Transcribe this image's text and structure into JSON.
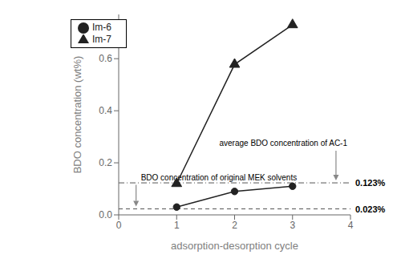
{
  "chart_data": {
    "type": "line",
    "x": [
      1,
      2,
      3
    ],
    "series": [
      {
        "name": "Im-6",
        "color": "#222222",
        "marker": "circle",
        "values": [
          0.03,
          0.09,
          0.11
        ]
      },
      {
        "name": "Im-7",
        "color": "#222222",
        "marker": "triangle",
        "values": [
          0.12,
          0.578,
          0.73
        ]
      }
    ],
    "xlabel": "adsorption-desorption cycle",
    "ylabel": "BDO concentration (wt%)",
    "xlim": [
      0,
      4
    ],
    "ylim": [
      0,
      0.77
    ],
    "xticks": [
      0,
      1,
      2,
      3,
      4
    ],
    "yticks": [
      {
        "value": 0.0,
        "label": "0.0"
      },
      0.2,
      0.4,
      0.6
    ],
    "grid": false,
    "legend": "upper left",
    "reference_lines": [
      {
        "y": 0.123,
        "label": "0.123%",
        "line_style": "dashdot",
        "color": "#555555",
        "annotation": "average BDO concentration of AC-1"
      },
      {
        "y": 0.023,
        "label": "0.023%",
        "line_style": "dashed",
        "color": "#555555",
        "annotation": "BDO concentration of original MEK solvents"
      }
    ]
  }
}
